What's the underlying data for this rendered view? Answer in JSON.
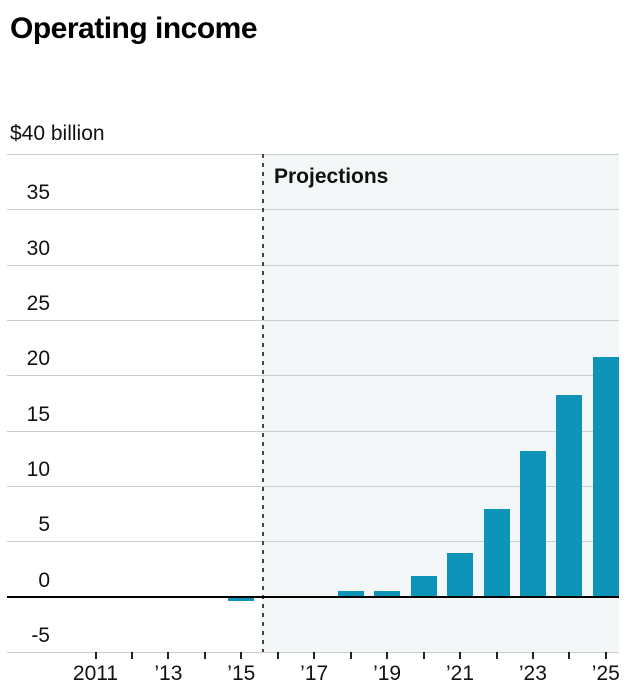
{
  "header": {
    "title": "Operating income"
  },
  "chart_data": {
    "type": "bar",
    "title": "Operating income",
    "unit_label": "$40 billion",
    "projection_label": "Projections",
    "projection_start_year": 2016,
    "x": [
      2011,
      2012,
      2013,
      2014,
      2015,
      2016,
      2017,
      2018,
      2019,
      2020,
      2021,
      2022,
      2023,
      2024,
      2025
    ],
    "values": [
      0,
      0,
      0,
      0,
      -0.3,
      0,
      0,
      0.5,
      0.5,
      1.9,
      3.9,
      7.9,
      13.2,
      18.2,
      21.7
    ],
    "x_tick_label_years": [
      2011,
      2013,
      2015,
      2017,
      2019,
      2021,
      2023,
      2025
    ],
    "x_tick_labels": [
      "2011",
      "’13",
      "’15",
      "’17",
      "’19",
      "’21",
      "’23",
      "’25"
    ],
    "y_ticks": [
      35,
      30,
      25,
      20,
      15,
      10,
      5,
      0,
      -5
    ],
    "ylim": [
      -5,
      40
    ],
    "grid_step": 5,
    "grid_on": true,
    "legend": "none",
    "bar_color": "#0d94b8",
    "grid_color": "#c9cfd1",
    "zero_line_color": "#000000",
    "axis_tick_color": "#222222",
    "projection_bg": "#f3f7f8",
    "dashed_line_color": "#454545",
    "text_color": "#111111"
  }
}
